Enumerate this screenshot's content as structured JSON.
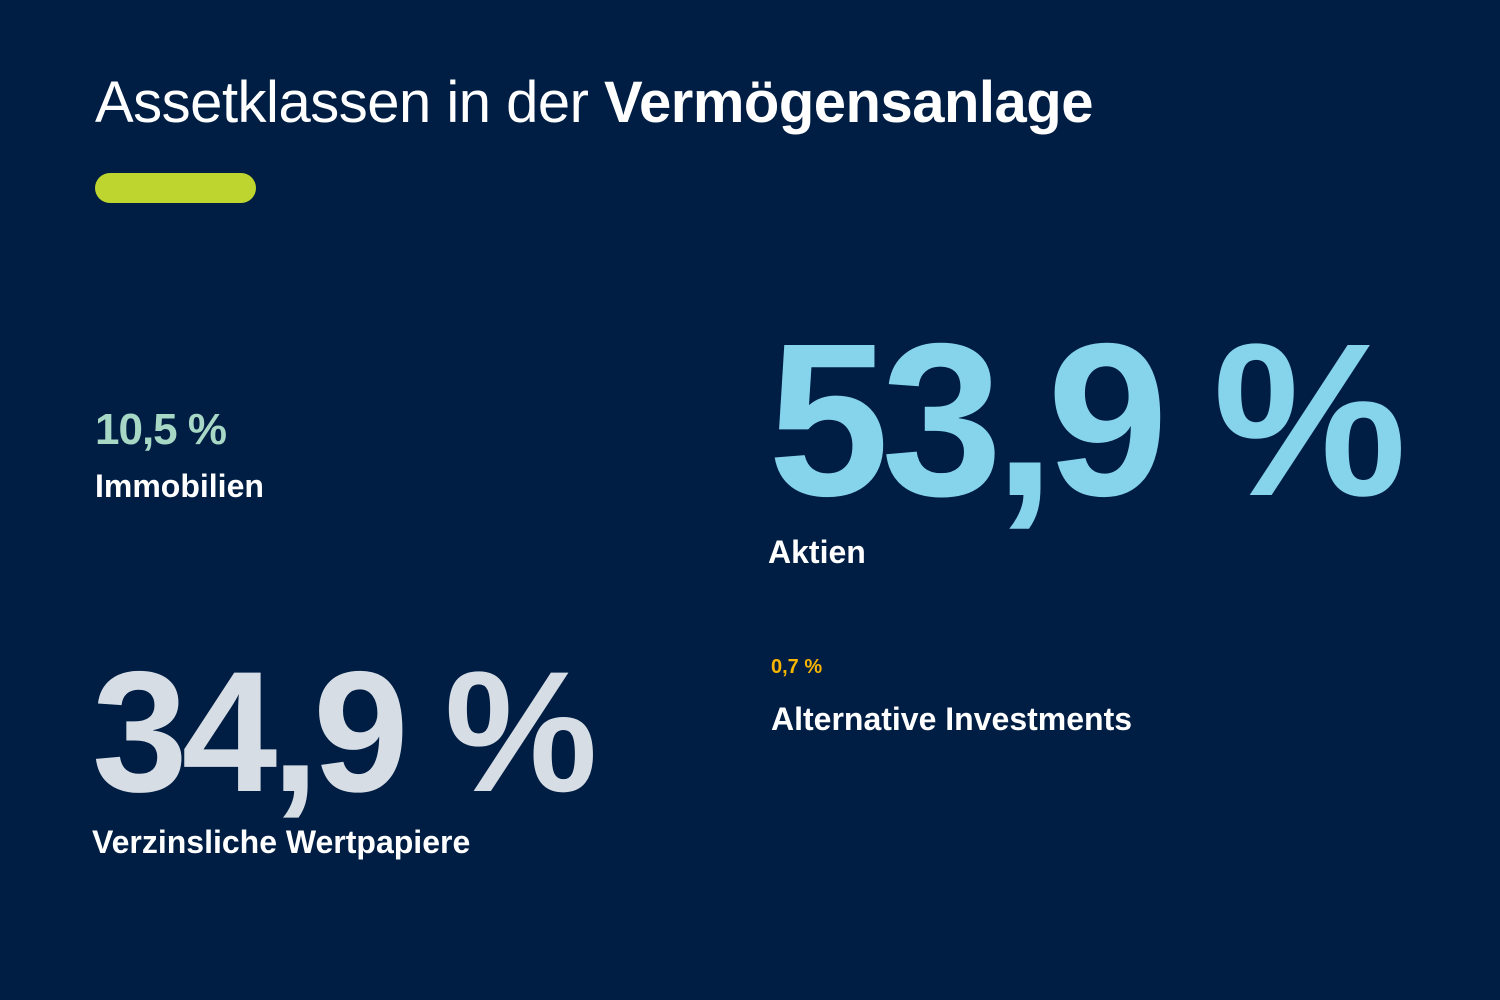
{
  "title": {
    "regular": "Assetklassen in der",
    "bold": "Vermögensanlage"
  },
  "colors": {
    "background": "#001e44",
    "accent_bar": "#bdd52e",
    "immobilien": "#a7d7c5",
    "aktien": "#86d3ec",
    "verzinsliche": "#d7dde5",
    "alternative": "#f7b500",
    "label": "#ffffff"
  },
  "stats": {
    "immobilien": {
      "value": "10,5 %",
      "label": "Immobilien",
      "share_percent": 10.5
    },
    "aktien": {
      "value": "53,9 %",
      "label": "Aktien",
      "share_percent": 53.9
    },
    "verzinsliche": {
      "value": "34,9 %",
      "label": "Verzinsliche Wertpapiere",
      "share_percent": 34.9
    },
    "alternative": {
      "value": "0,7 %",
      "label": "Alternative Investments",
      "share_percent": 0.7
    }
  }
}
